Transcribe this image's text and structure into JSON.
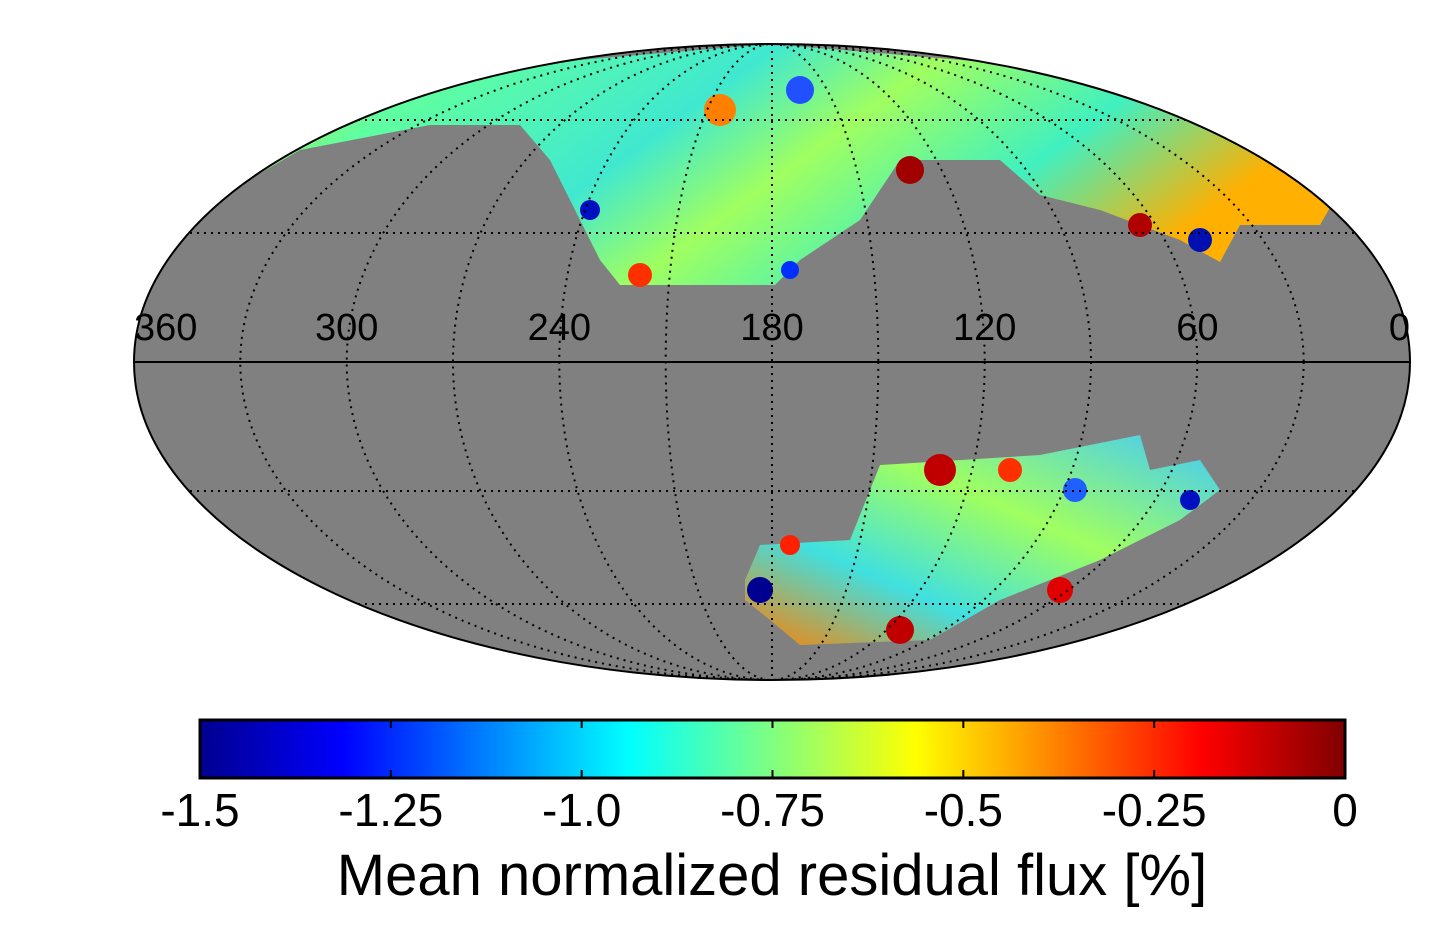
{
  "chart_data": {
    "type": "mollweide-map",
    "longitude_labels": [
      "360",
      "300",
      "240",
      "180",
      "120",
      "60",
      "0"
    ],
    "colorbar": {
      "label": "Mean normalized residual flux [%]",
      "clim": [
        -1.5,
        0
      ],
      "ticks": [
        -1.5,
        -1.25,
        {
          "value": -1.0,
          "label": "-1.0"
        },
        -0.75,
        {
          "value": -0.5,
          "label": "-0.5"
        },
        -0.25,
        0
      ],
      "colormap": [
        "#00008f",
        "#0000ff",
        "#0080ff",
        "#00ffff",
        "#80ff80",
        "#ffff00",
        "#ff8000",
        "#ff0000",
        "#800000"
      ]
    }
  }
}
